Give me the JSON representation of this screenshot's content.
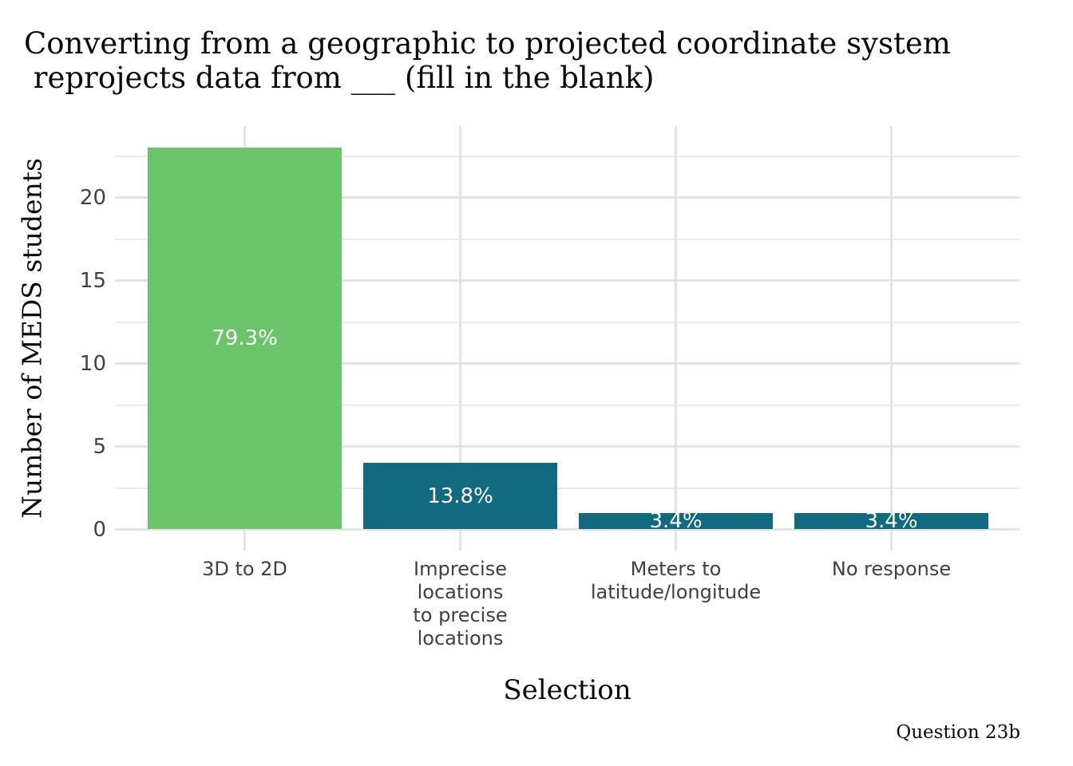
{
  "chart_data": {
    "type": "bar",
    "title": "Converting from a geographic to projected coordinate system\n reprojects data from ___ (fill in the blank)",
    "xlabel": "Selection",
    "ylabel": "Number of MEDS students",
    "caption": "Question 23b",
    "categories": [
      "3D to 2D",
      "Imprecise\nlocations\nto precise\nlocations",
      "Meters to\nlatitude/longitude",
      "No response"
    ],
    "values": [
      23,
      4,
      1,
      1
    ],
    "bar_labels": [
      "79.3%",
      "13.8%",
      "3.4%",
      "3.4%"
    ],
    "bar_colors": [
      "#6cc46a",
      "#116a80",
      "#116a80",
      "#116a80"
    ],
    "yticks": [
      0,
      5,
      10,
      15,
      20
    ],
    "minor_yticks": [
      2.5,
      7.5,
      12.5,
      17.5,
      22.5
    ],
    "ylim": [
      0,
      24.2
    ],
    "grid": "horizontal major+minor, vertical at category centers",
    "legend": "none"
  },
  "colors": {
    "highlight_green": "#6cc46a",
    "teal": "#116a80",
    "grid_major": "#e3e3e3",
    "grid_minor": "#eaeaea",
    "tick_text": "#404040",
    "title_text": "#0a0a0a",
    "bar_label_text": "#fcfcfc",
    "background": "#ffffff"
  }
}
